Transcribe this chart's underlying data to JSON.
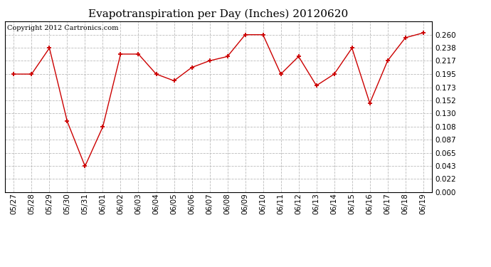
{
  "title": "Evapotranspiration per Day (Inches) 20120620",
  "copyright_text": "Copyright 2012 Cartronics.com",
  "dates": [
    "05/27",
    "05/28",
    "05/29",
    "05/30",
    "05/31",
    "06/01",
    "06/02",
    "06/03",
    "06/04",
    "06/05",
    "06/06",
    "06/07",
    "06/08",
    "06/09",
    "06/10",
    "06/11",
    "06/12",
    "06/13",
    "06/14",
    "06/15",
    "06/16",
    "06/17",
    "06/18",
    "06/19"
  ],
  "values": [
    0.195,
    0.195,
    0.238,
    0.117,
    0.043,
    0.108,
    0.228,
    0.228,
    0.195,
    0.184,
    0.206,
    0.217,
    0.224,
    0.26,
    0.26,
    0.195,
    0.224,
    0.176,
    0.195,
    0.238,
    0.147,
    0.217,
    0.255,
    0.263
  ],
  "line_color": "#cc0000",
  "marker_color": "#cc0000",
  "background_color": "#ffffff",
  "grid_color": "#bbbbbb",
  "ylim": [
    0.0,
    0.282
  ],
  "yticks": [
    0.0,
    0.022,
    0.043,
    0.065,
    0.087,
    0.108,
    0.13,
    0.152,
    0.173,
    0.195,
    0.217,
    0.238,
    0.26
  ],
  "title_fontsize": 11,
  "copyright_fontsize": 7,
  "tick_fontsize": 7.5,
  "marker_size": 5,
  "line_width": 1.0
}
